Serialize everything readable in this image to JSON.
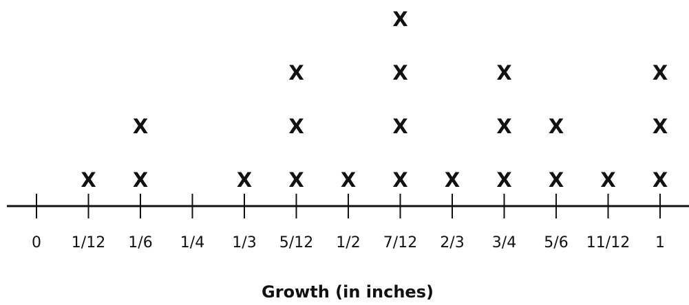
{
  "chart_data": {
    "type": "scatter",
    "chart_kind": "line plot (dot plot)",
    "xlabel": "Growth (in inches)",
    "ticks": [
      "0",
      "1/12",
      "1/6",
      "1/4",
      "1/3",
      "5/12",
      "1/2",
      "7/12",
      "2/3",
      "3/4",
      "5/6",
      "11/12",
      "1"
    ],
    "marker": "X",
    "counts": [
      0,
      1,
      2,
      0,
      1,
      3,
      1,
      4,
      1,
      3,
      2,
      1,
      3
    ],
    "xlim": [
      0,
      1
    ],
    "grid": false,
    "legend": "none"
  }
}
